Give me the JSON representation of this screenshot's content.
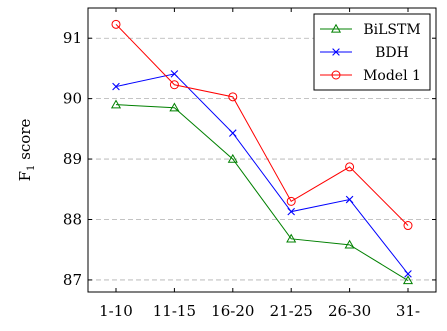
{
  "chart_data": {
    "type": "line",
    "title": "",
    "xlabel": "",
    "ylabel_main": "F",
    "ylabel_sub": "1",
    "ylabel_rest": " score",
    "categories": [
      "1-10",
      "11-15",
      "16-20",
      "21-25",
      "26-30",
      "31-"
    ],
    "ylim": [
      86.8,
      91.5
    ],
    "yticks": [
      87,
      88,
      89,
      90,
      91
    ],
    "grid": "horizontal dashed",
    "legend_position": "top-right",
    "series": [
      {
        "name": "BiLSTM",
        "color": "#008000",
        "marker": "triangle",
        "values": [
          89.9,
          89.85,
          89.0,
          87.68,
          87.58,
          86.99
        ]
      },
      {
        "name": "BDH",
        "color": "#0000ff",
        "marker": "x",
        "values": [
          90.2,
          90.41,
          89.43,
          88.13,
          88.33,
          87.1
        ]
      },
      {
        "name": "Model 1",
        "color": "#ff0000",
        "marker": "circle",
        "values": [
          91.23,
          90.23,
          90.03,
          88.3,
          88.87,
          87.9
        ]
      }
    ]
  }
}
